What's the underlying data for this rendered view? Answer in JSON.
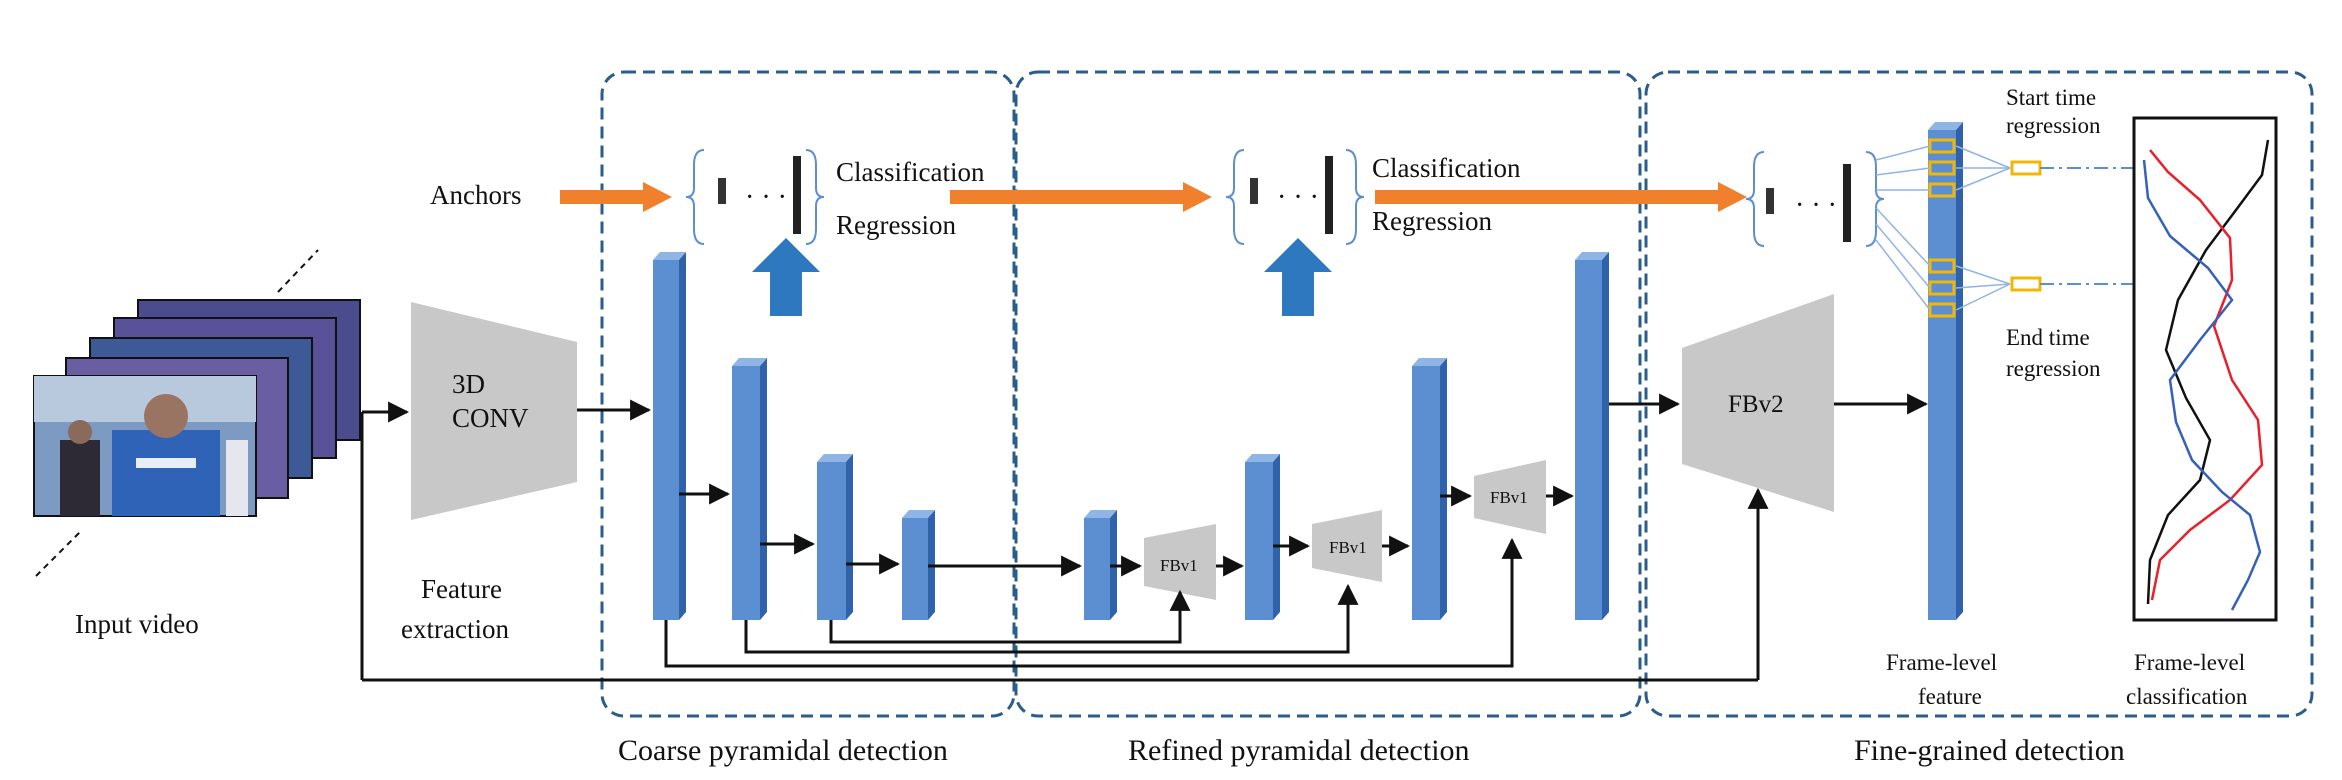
{
  "labels": {
    "input_video": "Input video",
    "feature_extraction_1": "Feature",
    "feature_extraction_2": "extraction",
    "conv_1": "3D",
    "conv_2": "CONV",
    "anchors": "Anchors",
    "classification": "Classification",
    "regression": "Regression",
    "fbv1": "FBv1",
    "fbv2": "FBv2",
    "start_time_1": "Start time",
    "start_time_2": "regression",
    "end_time_1": "End time",
    "end_time_2": "regression",
    "frame_feature_1": "Frame-level",
    "frame_feature_2": "feature",
    "frame_class_1": "Frame-level",
    "frame_class_2": "classification"
  },
  "sections": {
    "coarse": "Coarse pyramidal detection",
    "refined": "Refined pyramidal detection",
    "fine": "Fine-grained detection"
  },
  "colors": {
    "feature_blue": "#5b8fd2",
    "feature_blue_dark": "#2f62a8",
    "feature_blue_top": "#8fb4e6",
    "orange_arrow": "#f0802b",
    "up_arrow": "#2e78c0",
    "section_border": "#2b5d8a",
    "trapezoid_gray": "#c8c8c8",
    "anchor_box_yellow": "#f2b705",
    "curve_red": "#e8202a",
    "curve_blue": "#3562b8",
    "curve_black": "#111111"
  }
}
